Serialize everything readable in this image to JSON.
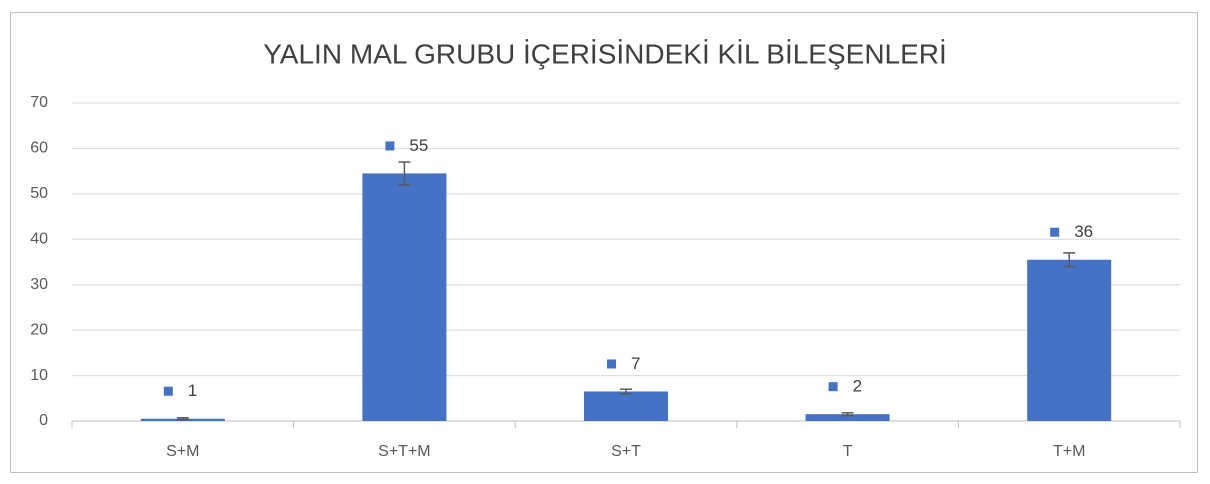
{
  "chart_data": {
    "type": "bar",
    "title": "YALIN MAL GRUBU İÇERİSİNDEKİ KİL BİLEŞENLERİ",
    "categories": [
      "S+M",
      "S+T+M",
      "S+T",
      "T",
      "T+M"
    ],
    "values": [
      0.5,
      54.5,
      6.5,
      1.5,
      35.5
    ],
    "value_labels": [
      "1",
      "55",
      "7",
      "2",
      "36"
    ],
    "errors": [
      0.2,
      2.5,
      0.5,
      0.3,
      1.5
    ],
    "color": "#4472c4",
    "ylim": [
      0,
      70
    ],
    "yticks": [
      0,
      10,
      20,
      30,
      40,
      50,
      60,
      70
    ],
    "grid": true
  }
}
